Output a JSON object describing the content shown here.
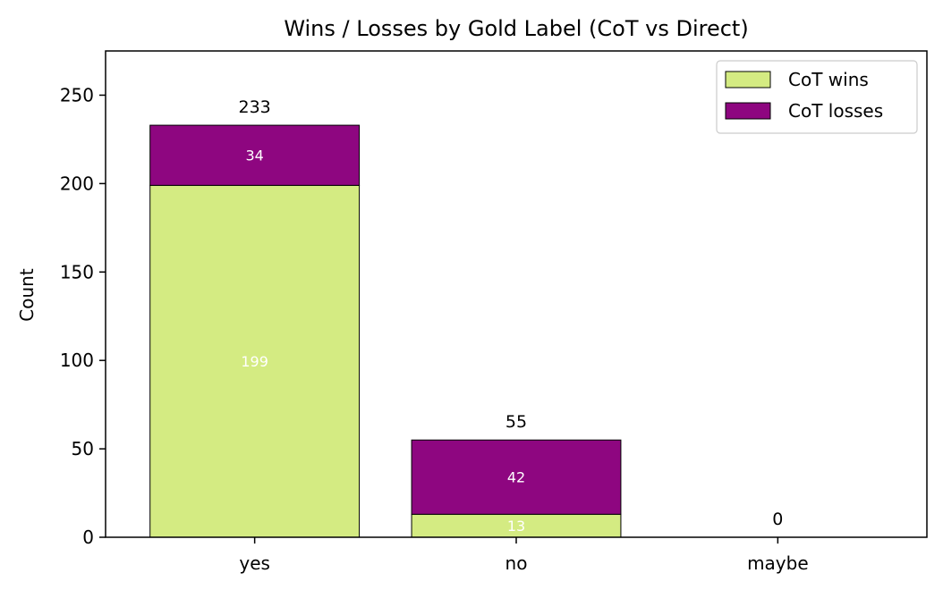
{
  "chart_data": {
    "type": "bar",
    "stacked": true,
    "title": "Wins / Losses by Gold Label (CoT vs Direct)",
    "xlabel": "",
    "ylabel": "Count",
    "categories": [
      "yes",
      "no",
      "maybe"
    ],
    "series": [
      {
        "name": "CoT wins",
        "values": [
          199,
          13,
          0
        ],
        "color": "#d4eb82"
      },
      {
        "name": "CoT losses",
        "values": [
          34,
          42,
          0
        ],
        "color": "#8e0680"
      }
    ],
    "totals": [
      233,
      55,
      0
    ],
    "ylim": [
      0,
      275
    ],
    "yticks": [
      0,
      50,
      100,
      150,
      200,
      250
    ],
    "grid": false,
    "legend_position": "top-right",
    "bar_edge_color": "#000000"
  }
}
